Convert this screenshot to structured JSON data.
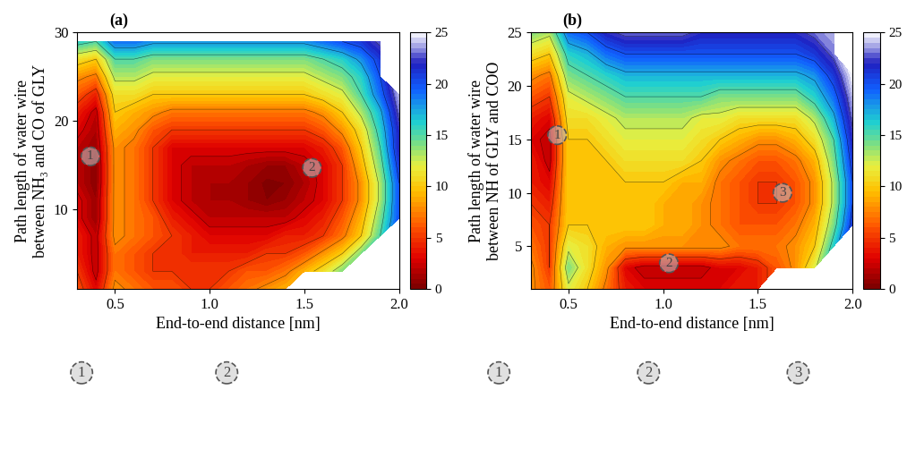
{
  "chart_data": [
    {
      "type": "contour",
      "panel_label": "(a)",
      "x_label": "End-to-end distance [nm]",
      "y_label": "Path length of water wire\nbetween NH₃ and CO of GLY",
      "xlim": [
        0.3,
        2.0
      ],
      "xticks": [
        0.5,
        1.0,
        1.5,
        2.0
      ],
      "ylim": [
        1,
        30
      ],
      "yticks": [
        10,
        20,
        30
      ],
      "x": [
        0.3,
        0.4,
        0.5,
        0.6,
        0.7,
        0.8,
        0.9,
        1.0,
        1.1,
        1.2,
        1.3,
        1.4,
        1.5,
        1.6,
        1.7,
        1.8,
        1.9,
        2.0
      ],
      "y": [
        1,
        3,
        5,
        7,
        9,
        11,
        13,
        15,
        17,
        19,
        21,
        23,
        25,
        27,
        29
      ],
      "z": [
        [
          6,
          3,
          8,
          7,
          6,
          6,
          5,
          5,
          6,
          7,
          8,
          9,
          null,
          null,
          null,
          null,
          null,
          null
        ],
        [
          5,
          2,
          7,
          6,
          5,
          5,
          5,
          5,
          5,
          6,
          6,
          7,
          9,
          11,
          14,
          null,
          null,
          null
        ],
        [
          4,
          2,
          7,
          6,
          5,
          5,
          4,
          4,
          4,
          4,
          5,
          5,
          6,
          8,
          10,
          14,
          null,
          null
        ],
        [
          4,
          2,
          8,
          7,
          6,
          5,
          4,
          3,
          3,
          3,
          3,
          4,
          4,
          5,
          7,
          10,
          15,
          null
        ],
        [
          3,
          1,
          8,
          7,
          6,
          4,
          3,
          2,
          2,
          2,
          2,
          2,
          3,
          4,
          6,
          9,
          14,
          20
        ],
        [
          3,
          1,
          8,
          7,
          5,
          3,
          2,
          1.5,
          1.5,
          1,
          0.5,
          1,
          2,
          3,
          5,
          8,
          13,
          20
        ],
        [
          2,
          0.5,
          8,
          7,
          5,
          3,
          2,
          1.5,
          1.5,
          1,
          0.3,
          0.5,
          1.5,
          3,
          5,
          8,
          13,
          20
        ],
        [
          2,
          0.5,
          8,
          7,
          5,
          3,
          2,
          2,
          2,
          1.5,
          1,
          1,
          2,
          3,
          5,
          9,
          14,
          21
        ],
        [
          2,
          1,
          8,
          7,
          5,
          3,
          3,
          3,
          3,
          3,
          3,
          3,
          3,
          4,
          6,
          10,
          15,
          22
        ],
        [
          3,
          1.5,
          9,
          8,
          6,
          5,
          5,
          5,
          5,
          5,
          5,
          5,
          5,
          6,
          8,
          11,
          16,
          22
        ],
        [
          4,
          2,
          10,
          9,
          8,
          7,
          7,
          7,
          7,
          7,
          7,
          7,
          7,
          8,
          10,
          13,
          17,
          23
        ],
        [
          6,
          4,
          11,
          11,
          10,
          10,
          10,
          10,
          10,
          10,
          10,
          10,
          10,
          11,
          12,
          15,
          19,
          24
        ],
        [
          8,
          7,
          13,
          13,
          12,
          12,
          12,
          12,
          12,
          12,
          12,
          12,
          12,
          13,
          14,
          16,
          20,
          null
        ],
        [
          11,
          10,
          15,
          15,
          14,
          14,
          14,
          14,
          14,
          14,
          14,
          14,
          14,
          15,
          16,
          18,
          21,
          null
        ],
        [
          16,
          15,
          19,
          19,
          18,
          18,
          18,
          18,
          18,
          18,
          18,
          18,
          18,
          19,
          20,
          21,
          23,
          null
        ]
      ],
      "colorbar_lim": [
        0,
        25
      ],
      "colorbar_ticks": [
        0,
        5,
        10,
        15,
        20,
        25
      ],
      "markers": [
        {
          "label": "1",
          "x": 0.37,
          "y": 16
        },
        {
          "label": "2",
          "x": 1.54,
          "y": 14.7
        }
      ],
      "snapshots": [
        "1",
        "2"
      ]
    },
    {
      "type": "contour",
      "panel_label": "(b)",
      "x_label": "End-to-end distance [nm]",
      "y_label": "Path length of water wire\nbetween NH of GLY and COO",
      "xlim": [
        0.3,
        2.0
      ],
      "xticks": [
        0.5,
        1.0,
        1.5,
        2.0
      ],
      "ylim": [
        1,
        25
      ],
      "yticks": [
        5,
        10,
        15,
        20,
        25
      ],
      "x": [
        0.3,
        0.4,
        0.5,
        0.6,
        0.7,
        0.8,
        0.9,
        1.0,
        1.1,
        1.2,
        1.3,
        1.4,
        1.5,
        1.6,
        1.7,
        1.8,
        1.9,
        2.0
      ],
      "y": [
        1,
        3,
        5,
        7,
        9,
        11,
        13,
        15,
        17,
        19,
        21,
        23,
        25
      ],
      "z": [
        [
          8,
          6,
          12,
          10,
          7,
          4,
          3,
          3,
          3,
          3,
          3,
          4,
          4,
          null,
          null,
          null,
          null,
          null
        ],
        [
          8,
          5,
          14,
          11,
          8,
          3,
          2,
          2,
          2,
          2,
          3,
          3,
          4,
          6,
          8,
          12,
          null,
          null
        ],
        [
          7,
          5,
          12,
          11,
          9,
          8,
          8,
          8,
          8,
          8,
          8,
          7,
          7,
          7,
          8,
          10,
          16,
          null
        ],
        [
          6,
          5,
          10,
          10,
          10,
          10,
          10,
          9,
          9,
          8,
          7,
          6,
          6,
          6,
          7,
          9,
          14,
          21
        ],
        [
          5,
          4,
          10,
          10,
          10,
          10,
          10,
          9,
          9,
          8,
          7,
          6,
          5,
          5,
          6,
          8,
          13,
          20
        ],
        [
          4,
          3,
          10,
          10,
          10,
          10,
          10,
          10,
          9,
          9,
          7,
          6,
          5,
          5,
          6,
          8,
          13,
          20
        ],
        [
          4,
          2,
          10,
          10,
          10,
          11,
          11,
          11,
          11,
          10,
          8,
          7,
          6,
          6,
          7,
          9,
          14,
          21
        ],
        [
          3,
          2,
          10,
          10,
          11,
          12,
          12,
          12,
          12,
          11,
          10,
          9,
          8,
          8,
          9,
          11,
          15,
          22
        ],
        [
          4,
          3,
          11,
          11,
          12,
          13,
          13,
          13,
          13,
          12,
          12,
          11,
          11,
          11,
          11,
          13,
          17,
          23
        ],
        [
          6,
          5,
          12,
          13,
          14,
          15,
          15,
          15,
          15,
          15,
          14,
          14,
          14,
          14,
          14,
          16,
          19,
          24
        ],
        [
          8,
          7,
          14,
          15,
          16,
          17,
          17,
          17,
          17,
          17,
          17,
          17,
          17,
          17,
          17,
          18,
          21,
          25
        ],
        [
          11,
          10,
          16,
          17,
          19,
          20,
          20,
          20,
          20,
          20,
          20,
          20,
          20,
          20,
          20,
          21,
          23,
          null
        ],
        [
          14,
          13,
          19,
          20,
          22,
          23,
          23,
          23,
          23,
          22,
          22,
          22,
          22,
          22,
          22,
          23,
          24,
          null
        ]
      ],
      "colorbar_lim": [
        0,
        25
      ],
      "colorbar_ticks": [
        0,
        5,
        10,
        15,
        20,
        25
      ],
      "markers": [
        {
          "label": "1",
          "x": 0.44,
          "y": 15.4
        },
        {
          "label": "2",
          "x": 1.03,
          "y": 3.4
        },
        {
          "label": "3",
          "x": 1.63,
          "y": 10
        }
      ],
      "snapshots": [
        "1",
        "2",
        "3"
      ]
    }
  ]
}
